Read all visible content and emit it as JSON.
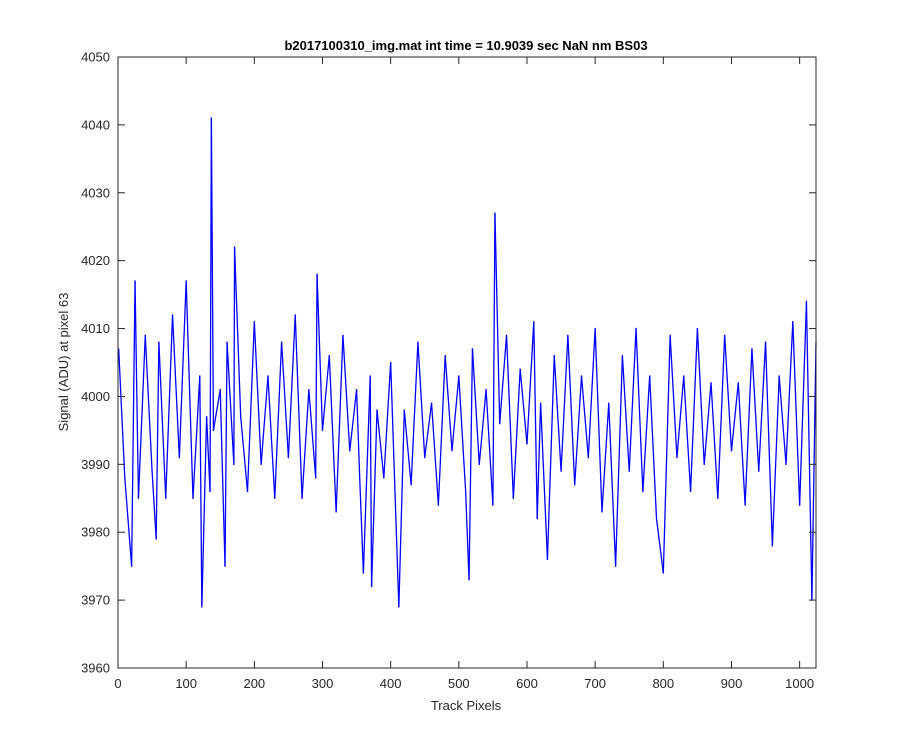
{
  "chart_data": {
    "type": "line",
    "title": "b2017100310_img.mat int time = 10.9039 sec  NaN nm BS03",
    "xlabel": "Track Pixels",
    "ylabel": "Signal (ADU) at pixel 63",
    "xlim": [
      0,
      1024
    ],
    "ylim": [
      3960,
      4050
    ],
    "xticks": [
      0,
      100,
      200,
      300,
      400,
      500,
      600,
      700,
      800,
      900,
      1000
    ],
    "yticks": [
      3960,
      3970,
      3980,
      3990,
      4000,
      4010,
      4020,
      4030,
      4040,
      4050
    ],
    "grid": false,
    "legend": "none",
    "series_color": "#0000ff",
    "series": [
      {
        "x": [
          1,
          10,
          20,
          25,
          30,
          40,
          50,
          56,
          60,
          70,
          80,
          90,
          100,
          110,
          120,
          123,
          130,
          135,
          137,
          140,
          150,
          157,
          160,
          170,
          171,
          180,
          190,
          200,
          210,
          220,
          230,
          240,
          250,
          260,
          270,
          280,
          290,
          292,
          300,
          310,
          320,
          330,
          340,
          350,
          355,
          360,
          370,
          372,
          380,
          390,
          400,
          412,
          420,
          430,
          440,
          450,
          460,
          470,
          480,
          490,
          500,
          510,
          515,
          520,
          530,
          540,
          550,
          553,
          560,
          570,
          580,
          590,
          600,
          610,
          615,
          620,
          630,
          640,
          650,
          660,
          670,
          680,
          690,
          700,
          710,
          720,
          730,
          740,
          750,
          760,
          770,
          780,
          790,
          800,
          810,
          820,
          830,
          840,
          850,
          860,
          870,
          880,
          890,
          900,
          910,
          920,
          930,
          940,
          950,
          960,
          970,
          980,
          990,
          1000,
          1010,
          1018,
          1024
        ],
        "y": [
          4007,
          3988,
          3975,
          4017,
          3985,
          4009,
          3989,
          3979,
          4008,
          3985,
          4012,
          3991,
          4017,
          3985,
          4003,
          3969,
          3997,
          3986,
          4041,
          3995,
          4001,
          3975,
          4008,
          3990,
          4022,
          3997,
          3986,
          4011,
          3990,
          4003,
          3985,
          4008,
          3991,
          4012,
          3985,
          4001,
          3988,
          4018,
          3995,
          4006,
          3983,
          4009,
          3992,
          4001,
          3987,
          3974,
          4003,
          3972,
          3998,
          3988,
          4005,
          3969,
          3998,
          3987,
          4008,
          3991,
          3999,
          3984,
          4006,
          3992,
          4003,
          3986,
          3973,
          4007,
          3990,
          4001,
          3984,
          4027,
          3996,
          4009,
          3985,
          4004,
          3993,
          4011,
          3982,
          3999,
          3976,
          4006,
          3989,
          4009,
          3987,
          4003,
          3991,
          4010,
          3983,
          3999,
          3975,
          4006,
          3989,
          4010,
          3986,
          4003,
          3982,
          3974,
          4009,
          3991,
          4003,
          3986,
          4010,
          3990,
          4002,
          3985,
          4009,
          3992,
          4002,
          3984,
          4007,
          3989,
          4008,
          3978,
          4003,
          3990,
          4011,
          3984,
          4014,
          3970,
          4008
        ]
      }
    ]
  }
}
